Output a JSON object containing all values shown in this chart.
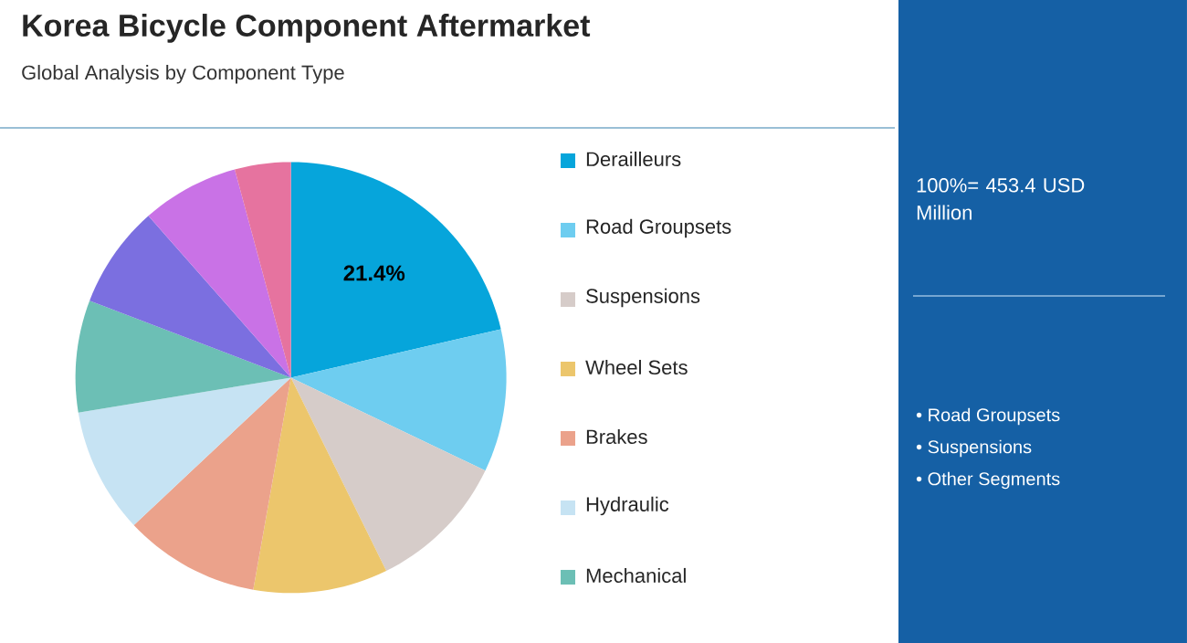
{
  "chart_data": {
    "type": "pie",
    "title": "Korea Bicycle Component Aftermarket",
    "subtitle": "Global Analysis by Component Type",
    "categories": [
      "Derailleurs",
      "Road Groupsets",
      "Suspensions",
      "Wheel Sets",
      "Brakes",
      "Hydraulic",
      "Mechanical",
      null,
      null,
      null
    ],
    "values": [
      21.4,
      10.7,
      10.6,
      10.1,
      10.2,
      9.4,
      8.4,
      7.7,
      7.3,
      4.2
    ],
    "colors": [
      "#06a5db",
      "#6ecdf0",
      "#d6ccc9",
      "#ecc66c",
      "#eba28b",
      "#c6e3f3",
      "#6cbfb5",
      "#7b6fe0",
      "#c972e6",
      "#e6739f"
    ],
    "value_labels": [
      "21.4%",
      null,
      null,
      null,
      null,
      null,
      null,
      null,
      null,
      null
    ],
    "legend": "right",
    "annotations": [
      "100%= 453.4 USD Million",
      "• Road Groupsets",
      "• Suspensions",
      "• Other Segments"
    ]
  }
}
